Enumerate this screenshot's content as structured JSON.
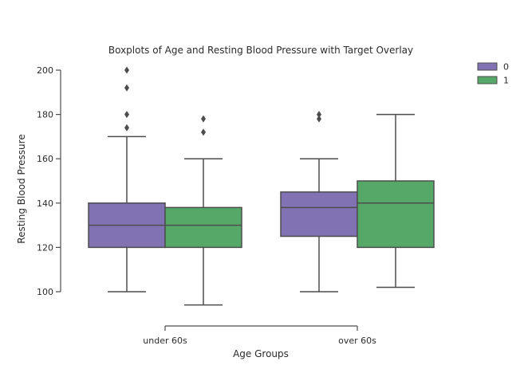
{
  "chart_data": {
    "type": "box",
    "title": "Boxplots of Age and Resting Blood Pressure with Target Overlay",
    "xlabel": "Age Groups",
    "ylabel": "Resting Blood Pressure",
    "categories": [
      "under 60s",
      "over 60s"
    ],
    "ylim": [
      90,
      205
    ],
    "yticks": [
      100,
      120,
      140,
      160,
      180,
      200
    ],
    "grid": false,
    "legend_position": "top-right",
    "series": [
      {
        "name": "0",
        "color": "#8172b3",
        "boxes": [
          {
            "whisker_low": 100,
            "q1": 120,
            "median": 130,
            "q3": 140,
            "whisker_high": 170,
            "outliers": [
              174,
              180,
              192,
              200
            ]
          },
          {
            "whisker_low": 100,
            "q1": 125,
            "median": 138,
            "q3": 145,
            "whisker_high": 160,
            "outliers": [
              178,
              180
            ]
          }
        ]
      },
      {
        "name": "1",
        "color": "#55a868",
        "boxes": [
          {
            "whisker_low": 94,
            "q1": 120,
            "median": 130,
            "q3": 138,
            "whisker_high": 160,
            "outliers": [
              172,
              178
            ]
          },
          {
            "whisker_low": 102,
            "q1": 120,
            "median": 140,
            "q3": 150,
            "whisker_high": 180,
            "outliers": []
          }
        ]
      }
    ]
  }
}
